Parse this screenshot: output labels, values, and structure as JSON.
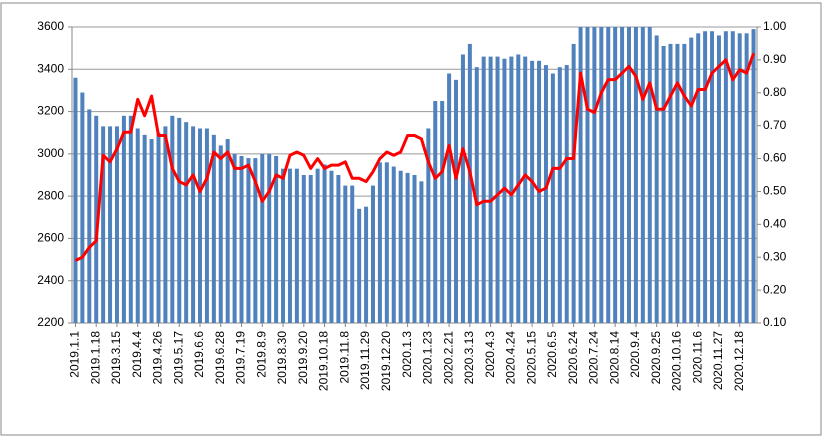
{
  "chart_data": {
    "type": "bar_line",
    "categories": [
      "2019.1.1",
      null,
      null,
      "2019.1.18",
      null,
      null,
      "2019.3.15",
      null,
      null,
      "2019.4.4",
      null,
      null,
      "2019.4.26",
      null,
      null,
      "2019.5.17",
      null,
      null,
      "2019.6.6",
      null,
      null,
      "2019.6.28",
      null,
      null,
      "2019.7.19",
      null,
      null,
      "2019.8.9",
      null,
      null,
      "2019.8.30",
      null,
      null,
      "2019.9.20",
      null,
      null,
      "2019.10.18",
      null,
      null,
      "2019.11.8",
      null,
      null,
      "2019.11.29",
      null,
      null,
      "2019.12.20",
      null,
      null,
      "2020.1.3",
      null,
      null,
      "2020.1.23",
      null,
      null,
      "2020.2.21",
      null,
      null,
      "2020.3.13",
      null,
      null,
      "2020.4.3",
      null,
      null,
      "2020.4.24",
      null,
      null,
      "2020.5.15",
      null,
      null,
      "2020.6.5",
      null,
      null,
      "2020.6.24",
      null,
      null,
      "2020.7.24",
      null,
      null,
      "2020.8.14",
      null,
      null,
      "2020.9.4",
      null,
      null,
      "2020.9.25",
      null,
      null,
      "2020.10.16",
      null,
      null,
      "2020.11.6",
      null,
      null,
      "2020.11.27",
      null,
      null,
      "2020.12.18",
      null,
      null
    ],
    "series": [
      {
        "type": "bar",
        "color": "#4f81bd",
        "values": [
          3360,
          3290,
          3210,
          3180,
          3130,
          3130,
          3130,
          3180,
          3180,
          3120,
          3090,
          3070,
          3100,
          3130,
          3180,
          3170,
          3150,
          3130,
          3120,
          3120,
          3090,
          3040,
          3070,
          3000,
          2990,
          2980,
          2980,
          3000,
          3000,
          2990,
          2930,
          2930,
          2930,
          2900,
          2900,
          2930,
          2950,
          2920,
          2900,
          2850,
          2850,
          2740,
          2750,
          2850,
          2960,
          2960,
          2940,
          2920,
          2910,
          2900,
          2870,
          3120,
          3250,
          3250,
          3380,
          3350,
          3470,
          3520,
          3410,
          3460,
          3460,
          3460,
          3450,
          3460,
          3470,
          3460,
          3440,
          3440,
          3420,
          3380,
          3410,
          3420,
          3520,
          3600,
          3600,
          3600,
          3600,
          3600,
          3600,
          3600,
          3600,
          3600,
          3600,
          3600,
          3560,
          3510,
          3520,
          3520,
          3520,
          3550,
          3570,
          3580,
          3580,
          3560,
          3580,
          3580,
          3570,
          3570,
          3590
        ]
      },
      {
        "type": "line",
        "axis": "y2",
        "color": "#ff0000",
        "values": [
          0.29,
          0.3,
          0.33,
          0.35,
          0.61,
          0.59,
          0.63,
          0.68,
          0.68,
          0.78,
          0.73,
          0.79,
          0.67,
          0.67,
          0.57,
          0.53,
          0.52,
          0.55,
          0.5,
          0.54,
          0.62,
          0.6,
          0.62,
          0.57,
          0.57,
          0.58,
          0.53,
          0.47,
          0.5,
          0.55,
          0.54,
          0.61,
          0.62,
          0.61,
          0.57,
          0.6,
          0.57,
          0.58,
          0.58,
          0.59,
          0.54,
          0.54,
          0.53,
          0.56,
          0.6,
          0.62,
          0.61,
          0.62,
          0.67,
          0.67,
          0.66,
          0.59,
          0.54,
          0.56,
          0.64,
          0.54,
          0.63,
          0.56,
          0.46,
          0.47,
          0.47,
          0.49,
          0.51,
          0.49,
          0.52,
          0.55,
          0.53,
          0.5,
          0.51,
          0.57,
          0.57,
          0.6,
          0.6,
          0.86,
          0.75,
          0.74,
          0.8,
          0.84,
          0.84,
          0.86,
          0.88,
          0.85,
          0.78,
          0.83,
          0.75,
          0.75,
          0.79,
          0.83,
          0.79,
          0.76,
          0.81,
          0.81,
          0.86,
          0.88,
          0.9,
          0.84,
          0.87,
          0.86,
          0.92
        ]
      }
    ],
    "ylim": [
      2200,
      3600
    ],
    "yticks": [
      2200,
      2400,
      2600,
      2800,
      3000,
      3200,
      3400,
      3600
    ],
    "y2lim": [
      0.1,
      1.0
    ],
    "y2ticks": [
      {
        "value": 0.1,
        "label": "0.10"
      },
      {
        "value": 0.2,
        "label": "0.20"
      },
      {
        "value": 0.3,
        "label": "0.30"
      },
      {
        "value": 0.4,
        "label": "0.40"
      },
      {
        "value": 0.5,
        "label": "0.50"
      },
      {
        "value": 0.6,
        "label": "0.60"
      },
      {
        "value": 0.7,
        "label": "0.70"
      },
      {
        "value": 0.8,
        "label": "0.80"
      },
      {
        "value": 0.9,
        "label": "0.90"
      },
      {
        "value": 1.0,
        "label": "1.00"
      }
    ],
    "grid": true
  }
}
